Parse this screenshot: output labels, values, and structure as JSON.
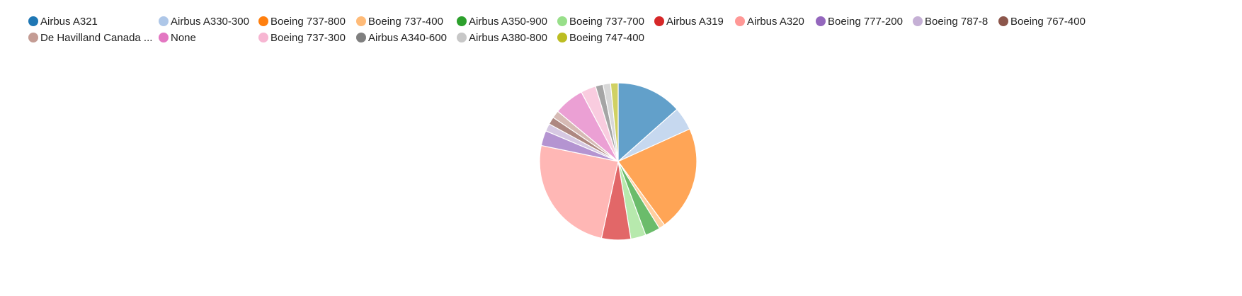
{
  "chart_data": {
    "type": "pie",
    "title": "",
    "legend_position": "top",
    "slices": [
      {
        "name": "Airbus A321",
        "value": 13.0,
        "color": "#1f77b4"
      },
      {
        "name": "Airbus A330-300",
        "value": 4.6,
        "color": "#aec7e8"
      },
      {
        "name": "Boeing 737-800",
        "value": 21.0,
        "color": "#ff7f0e"
      },
      {
        "name": "Boeing 737-400",
        "value": 1.2,
        "color": "#ffbb78"
      },
      {
        "name": "Airbus A350-900",
        "value": 3.0,
        "color": "#2ca02c"
      },
      {
        "name": "Boeing 737-700",
        "value": 3.0,
        "color": "#98df8a"
      },
      {
        "name": "Airbus A319",
        "value": 5.8,
        "color": "#d62728"
      },
      {
        "name": "Airbus A320",
        "value": 24.0,
        "color": "#ff9896"
      },
      {
        "name": "Boeing 777-200",
        "value": 3.0,
        "color": "#9467bd"
      },
      {
        "name": "Boeing 787-8",
        "value": 1.5,
        "color": "#c5b0d5"
      },
      {
        "name": "Boeing 767-400",
        "value": 1.5,
        "color": "#8c564b"
      },
      {
        "name": "De Havilland Canada ...",
        "value": 1.5,
        "color": "#c49c94"
      },
      {
        "name": "None",
        "value": 6.0,
        "color": "#e377c2"
      },
      {
        "name": "Boeing 737-300",
        "value": 3.0,
        "color": "#f7b6d2"
      },
      {
        "name": "Airbus A340-600",
        "value": 1.5,
        "color": "#7f7f7f"
      },
      {
        "name": "Airbus A380-800",
        "value": 1.5,
        "color": "#c7c7c7"
      },
      {
        "name": "Boeing 747-400",
        "value": 1.5,
        "color": "#bcbd22"
      }
    ]
  }
}
